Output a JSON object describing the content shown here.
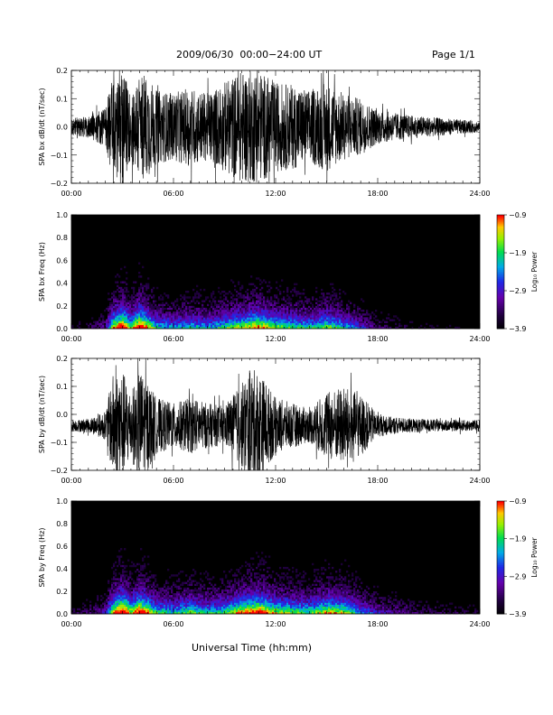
{
  "header": {
    "title": "2009/06/30  00:00−24:00 UT",
    "page": "Page 1/1"
  },
  "xaxis_title": "Universal Time (hh:mm)",
  "chart_data": [
    {
      "type": "line",
      "ylabel": "SPA bx dB/dt (nT/sec)",
      "xlim": [
        0,
        24
      ],
      "ylim": [
        -0.2,
        0.2
      ],
      "xticks": [
        "00:00",
        "06:00",
        "12:00",
        "18:00",
        "24:00"
      ],
      "yticks": [
        "0.2",
        "0.1",
        "0.0",
        "−0.1",
        "−0.2"
      ],
      "baseline": 0.0,
      "envelope": [
        [
          0,
          0.03
        ],
        [
          1,
          0.04
        ],
        [
          2,
          0.07
        ],
        [
          2.5,
          0.2
        ],
        [
          3,
          0.2
        ],
        [
          3.5,
          0.12
        ],
        [
          4,
          0.2
        ],
        [
          4.5,
          0.18
        ],
        [
          5,
          0.13
        ],
        [
          6,
          0.12
        ],
        [
          7,
          0.14
        ],
        [
          8,
          0.12
        ],
        [
          9,
          0.16
        ],
        [
          10,
          0.2
        ],
        [
          10.5,
          0.2
        ],
        [
          11,
          0.2
        ],
        [
          12,
          0.16
        ],
        [
          13,
          0.15
        ],
        [
          14,
          0.13
        ],
        [
          15,
          0.16
        ],
        [
          16,
          0.12
        ],
        [
          17,
          0.1
        ],
        [
          18,
          0.06
        ],
        [
          19,
          0.05
        ],
        [
          20,
          0.04
        ],
        [
          21,
          0.035
        ],
        [
          22,
          0.03
        ],
        [
          23,
          0.025
        ],
        [
          24,
          0.02
        ]
      ]
    },
    {
      "type": "heatmap",
      "ylabel": "SPA bx Freq (Hz)",
      "xlim": [
        0,
        24
      ],
      "ylim": [
        0,
        1.0
      ],
      "xticks": [
        "00:00",
        "06:00",
        "12:00",
        "18:00",
        "24:00"
      ],
      "yticks": [
        "1.0",
        "0.8",
        "0.6",
        "0.4",
        "0.2",
        "0.0"
      ],
      "colorbar": {
        "label": "Log₁₀ Power",
        "ticks": [
          "−0.9",
          "−1.9",
          "−2.9",
          "−3.9"
        ],
        "range": [
          -3.9,
          -0.9
        ]
      },
      "activity": [
        [
          0,
          0.1
        ],
        [
          1,
          0.15
        ],
        [
          2,
          0.25
        ],
        [
          2.5,
          0.7
        ],
        [
          3,
          0.9
        ],
        [
          3.5,
          0.6
        ],
        [
          4,
          0.9
        ],
        [
          4.5,
          0.7
        ],
        [
          5,
          0.5
        ],
        [
          6,
          0.45
        ],
        [
          7,
          0.5
        ],
        [
          8,
          0.45
        ],
        [
          9,
          0.55
        ],
        [
          10,
          0.65
        ],
        [
          11,
          0.75
        ],
        [
          12,
          0.6
        ],
        [
          13,
          0.55
        ],
        [
          14,
          0.5
        ],
        [
          15,
          0.6
        ],
        [
          16,
          0.5
        ],
        [
          17,
          0.35
        ],
        [
          18,
          0.2
        ],
        [
          19,
          0.15
        ],
        [
          20,
          0.12
        ],
        [
          22,
          0.1
        ],
        [
          24,
          0.08
        ]
      ]
    },
    {
      "type": "line",
      "ylabel": "SPA by dB/dt (nT/sec)",
      "xlim": [
        0,
        24
      ],
      "ylim": [
        -0.2,
        0.2
      ],
      "xticks": [
        "00:00",
        "06:00",
        "12:00",
        "18:00",
        "24:00"
      ],
      "yticks": [
        "0.2",
        "0.1",
        "0.0",
        "−0.1",
        "−0.2"
      ],
      "baseline": -0.04,
      "envelope": [
        [
          0,
          0.02
        ],
        [
          1,
          0.025
        ],
        [
          2,
          0.05
        ],
        [
          2.5,
          0.2
        ],
        [
          3,
          0.2
        ],
        [
          3.5,
          0.12
        ],
        [
          4,
          0.2
        ],
        [
          4.5,
          0.16
        ],
        [
          5,
          0.1
        ],
        [
          6,
          0.08
        ],
        [
          7,
          0.1
        ],
        [
          8,
          0.08
        ],
        [
          9,
          0.07
        ],
        [
          10,
          0.15
        ],
        [
          10.5,
          0.2
        ],
        [
          11,
          0.2
        ],
        [
          12,
          0.1
        ],
        [
          13,
          0.08
        ],
        [
          14,
          0.06
        ],
        [
          15,
          0.12
        ],
        [
          16,
          0.14
        ],
        [
          17,
          0.11
        ],
        [
          18,
          0.04
        ],
        [
          19,
          0.03
        ],
        [
          20,
          0.025
        ],
        [
          22,
          0.02
        ],
        [
          24,
          0.02
        ]
      ]
    },
    {
      "type": "heatmap",
      "ylabel": "SPA by Freq (Hz)",
      "xlim": [
        0,
        24
      ],
      "ylim": [
        0,
        1.0
      ],
      "xticks": [
        "00:00",
        "06:00",
        "12:00",
        "18:00",
        "24:00"
      ],
      "yticks": [
        "1.0",
        "0.8",
        "0.6",
        "0.4",
        "0.2",
        "0.0"
      ],
      "colorbar": {
        "label": "Log₁₀ Power",
        "ticks": [
          "−0.9",
          "−1.9",
          "−2.9",
          "−3.9"
        ],
        "range": [
          -3.9,
          -0.9
        ]
      },
      "activity": [
        [
          0,
          0.12
        ],
        [
          1,
          0.18
        ],
        [
          2,
          0.3
        ],
        [
          2.5,
          0.75
        ],
        [
          3,
          0.95
        ],
        [
          3.5,
          0.65
        ],
        [
          4,
          0.9
        ],
        [
          4.5,
          0.75
        ],
        [
          5,
          0.55
        ],
        [
          6,
          0.5
        ],
        [
          7,
          0.6
        ],
        [
          8,
          0.5
        ],
        [
          9,
          0.55
        ],
        [
          10,
          0.75
        ],
        [
          11,
          0.85
        ],
        [
          12,
          0.65
        ],
        [
          13,
          0.6
        ],
        [
          14,
          0.55
        ],
        [
          15,
          0.7
        ],
        [
          16,
          0.65
        ],
        [
          17,
          0.45
        ],
        [
          18,
          0.3
        ],
        [
          19,
          0.25
        ],
        [
          20,
          0.2
        ],
        [
          22,
          0.15
        ],
        [
          24,
          0.12
        ]
      ]
    }
  ]
}
